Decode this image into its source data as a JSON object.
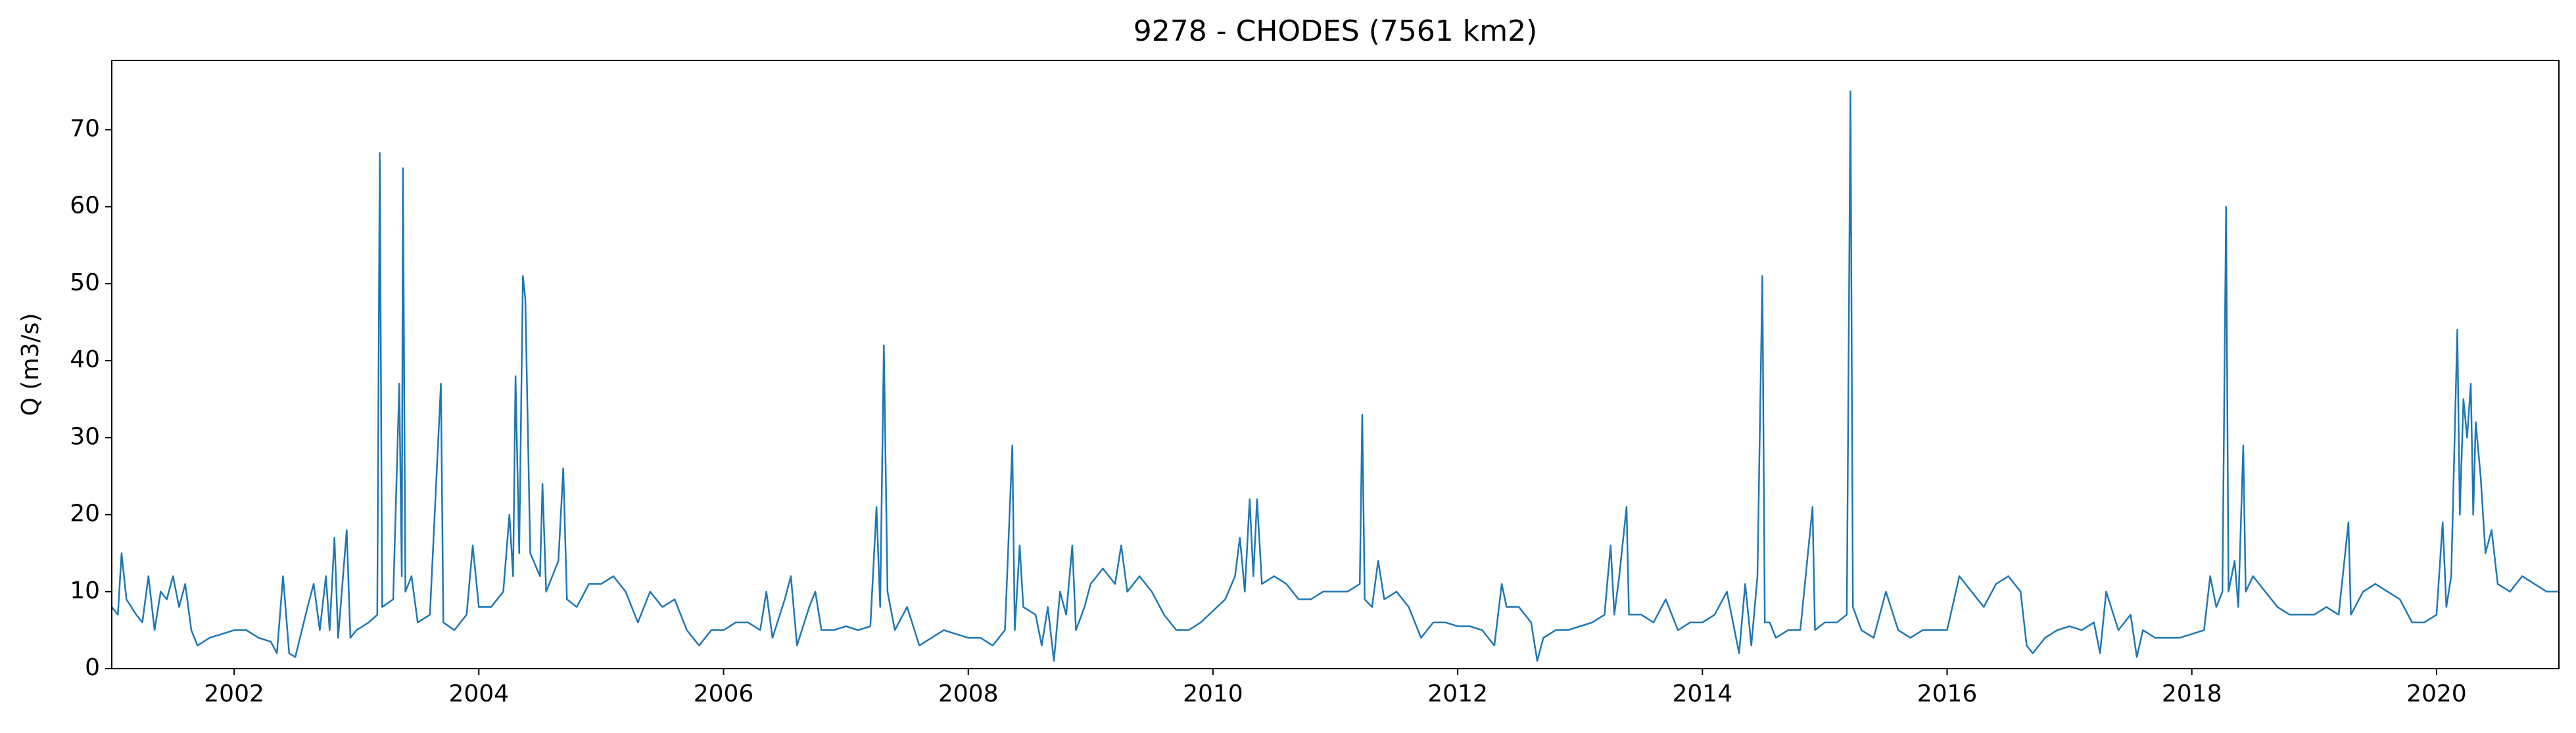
{
  "chart_data": {
    "type": "line",
    "title": "9278 - CHODES (7561 km2)",
    "ylabel": "Q (m3/s)",
    "xlim": [
      2001,
      2021
    ],
    "ylim": [
      0,
      79
    ],
    "xticks": [
      2002,
      2004,
      2006,
      2008,
      2010,
      2012,
      2014,
      2016,
      2018,
      2020
    ],
    "yticks": [
      0,
      10,
      20,
      30,
      40,
      50,
      60,
      70
    ],
    "x": [
      2001.0,
      2001.05,
      2001.08,
      2001.12,
      2001.2,
      2001.25,
      2001.3,
      2001.35,
      2001.4,
      2001.45,
      2001.5,
      2001.55,
      2001.6,
      2001.65,
      2001.7,
      2001.8,
      2001.9,
      2002.0,
      2002.1,
      2002.2,
      2002.3,
      2002.35,
      2002.4,
      2002.45,
      2002.5,
      2002.6,
      2002.65,
      2002.7,
      2002.75,
      2002.78,
      2002.82,
      2002.85,
      2002.92,
      2002.95,
      2003.0,
      2003.1,
      2003.17,
      2003.19,
      2003.21,
      2003.3,
      2003.35,
      2003.37,
      2003.38,
      2003.4,
      2003.45,
      2003.5,
      2003.6,
      2003.69,
      2003.71,
      2003.8,
      2003.9,
      2003.95,
      2004.0,
      2004.1,
      2004.2,
      2004.25,
      2004.28,
      2004.3,
      2004.33,
      2004.36,
      2004.38,
      2004.42,
      2004.5,
      2004.52,
      2004.55,
      2004.65,
      2004.69,
      2004.72,
      2004.8,
      2004.9,
      2005.0,
      2005.1,
      2005.2,
      2005.3,
      2005.4,
      2005.5,
      2005.6,
      2005.7,
      2005.8,
      2005.9,
      2006.0,
      2006.1,
      2006.2,
      2006.3,
      2006.35,
      2006.4,
      2006.5,
      2006.55,
      2006.6,
      2006.7,
      2006.75,
      2006.8,
      2006.9,
      2007.0,
      2007.1,
      2007.2,
      2007.25,
      2007.28,
      2007.31,
      2007.34,
      2007.4,
      2007.5,
      2007.6,
      2007.7,
      2007.8,
      2007.9,
      2008.0,
      2008.1,
      2008.2,
      2008.3,
      2008.36,
      2008.38,
      2008.42,
      2008.45,
      2008.55,
      2008.6,
      2008.65,
      2008.7,
      2008.75,
      2008.8,
      2008.85,
      2008.88,
      2008.95,
      2009.0,
      2009.1,
      2009.2,
      2009.25,
      2009.3,
      2009.4,
      2009.5,
      2009.6,
      2009.7,
      2009.8,
      2009.9,
      2010.0,
      2010.1,
      2010.18,
      2010.22,
      2010.26,
      2010.3,
      2010.33,
      2010.36,
      2010.4,
      2010.5,
      2010.6,
      2010.7,
      2010.8,
      2010.9,
      2011.0,
      2011.1,
      2011.2,
      2011.22,
      2011.24,
      2011.3,
      2011.35,
      2011.4,
      2011.5,
      2011.6,
      2011.7,
      2011.8,
      2011.9,
      2012.0,
      2012.1,
      2012.2,
      2012.3,
      2012.36,
      2012.4,
      2012.5,
      2012.6,
      2012.65,
      2012.7,
      2012.8,
      2012.9,
      2013.0,
      2013.1,
      2013.2,
      2013.25,
      2013.28,
      2013.32,
      2013.38,
      2013.4,
      2013.5,
      2013.6,
      2013.7,
      2013.8,
      2013.9,
      2014.0,
      2014.1,
      2014.2,
      2014.3,
      2014.35,
      2014.4,
      2014.45,
      2014.49,
      2014.51,
      2014.55,
      2014.6,
      2014.7,
      2014.8,
      2014.9,
      2014.92,
      2015.0,
      2015.1,
      2015.18,
      2015.21,
      2015.23,
      2015.3,
      2015.4,
      2015.5,
      2015.6,
      2015.7,
      2015.8,
      2015.9,
      2016.0,
      2016.1,
      2016.2,
      2016.3,
      2016.4,
      2016.5,
      2016.6,
      2016.65,
      2016.7,
      2016.8,
      2016.9,
      2017.0,
      2017.1,
      2017.2,
      2017.25,
      2017.3,
      2017.4,
      2017.5,
      2017.55,
      2017.6,
      2017.7,
      2017.8,
      2017.9,
      2018.0,
      2018.1,
      2018.15,
      2018.2,
      2018.25,
      2018.28,
      2018.3,
      2018.35,
      2018.38,
      2018.42,
      2018.44,
      2018.5,
      2018.6,
      2018.7,
      2018.8,
      2018.9,
      2019.0,
      2019.1,
      2019.2,
      2019.28,
      2019.3,
      2019.4,
      2019.5,
      2019.6,
      2019.7,
      2019.8,
      2019.9,
      2020.0,
      2020.05,
      2020.08,
      2020.12,
      2020.17,
      2020.19,
      2020.22,
      2020.25,
      2020.28,
      2020.3,
      2020.32,
      2020.36,
      2020.4,
      2020.45,
      2020.5,
      2020.6,
      2020.7,
      2020.8,
      2020.9,
      2021.0
    ],
    "series": [
      {
        "color": "#1f77b4",
        "values": [
          8,
          7,
          15,
          9,
          7,
          6,
          12,
          5,
          10,
          9,
          12,
          8,
          11,
          5,
          3,
          4,
          4.5,
          5,
          5,
          4,
          3.5,
          2,
          12,
          2,
          1.5,
          8,
          11,
          5,
          12,
          5,
          17,
          4,
          18,
          4,
          5,
          6,
          7,
          67,
          8,
          9,
          37,
          12,
          65,
          10,
          12,
          6,
          7,
          37,
          6,
          5,
          7,
          16,
          8,
          8,
          10,
          20,
          12,
          38,
          15,
          51,
          48,
          15,
          12,
          24,
          10,
          14,
          26,
          9,
          8,
          11,
          11,
          12,
          10,
          6,
          10,
          8,
          9,
          5,
          3,
          5,
          5,
          6,
          6,
          5,
          10,
          4,
          9,
          12,
          3,
          8,
          10,
          5,
          5,
          5.5,
          5,
          5.5,
          21,
          8,
          42,
          10,
          5,
          8,
          3,
          4,
          5,
          4.5,
          4,
          4,
          3,
          5,
          29,
          5,
          16,
          8,
          7,
          3,
          8,
          1,
          10,
          7,
          16,
          5,
          8,
          11,
          13,
          11,
          16,
          10,
          12,
          10,
          7,
          5,
          5,
          6,
          7.5,
          9,
          12,
          17,
          10,
          22,
          12,
          22,
          11,
          12,
          11,
          9,
          9,
          10,
          10,
          10,
          11,
          33,
          9,
          8,
          14,
          9,
          10,
          8,
          4,
          6,
          6,
          5.5,
          5.5,
          5,
          3,
          11,
          8,
          8,
          6,
          1,
          4,
          5,
          5,
          5.5,
          6,
          7,
          16,
          7,
          12,
          21,
          7,
          7,
          6,
          9,
          5,
          6,
          6,
          7,
          10,
          2,
          11,
          3,
          12,
          51,
          6,
          6,
          4,
          5,
          5,
          21,
          5,
          6,
          6,
          7,
          75,
          8,
          5,
          4,
          10,
          5,
          4,
          5,
          5,
          5,
          12,
          10,
          8,
          11,
          12,
          10,
          3,
          2,
          4,
          5,
          5.5,
          5,
          6,
          2,
          10,
          5,
          7,
          1.5,
          5,
          4,
          4,
          4,
          4.5,
          5,
          12,
          8,
          10,
          60,
          10,
          14,
          8,
          29,
          10,
          12,
          10,
          8,
          7,
          7,
          7,
          8,
          7,
          19,
          7,
          10,
          11,
          10,
          9,
          6,
          6,
          7,
          19,
          8,
          12,
          44,
          20,
          35,
          30,
          37,
          20,
          32,
          25,
          15,
          18,
          11,
          10,
          12,
          11,
          10,
          10
        ]
      }
    ]
  }
}
